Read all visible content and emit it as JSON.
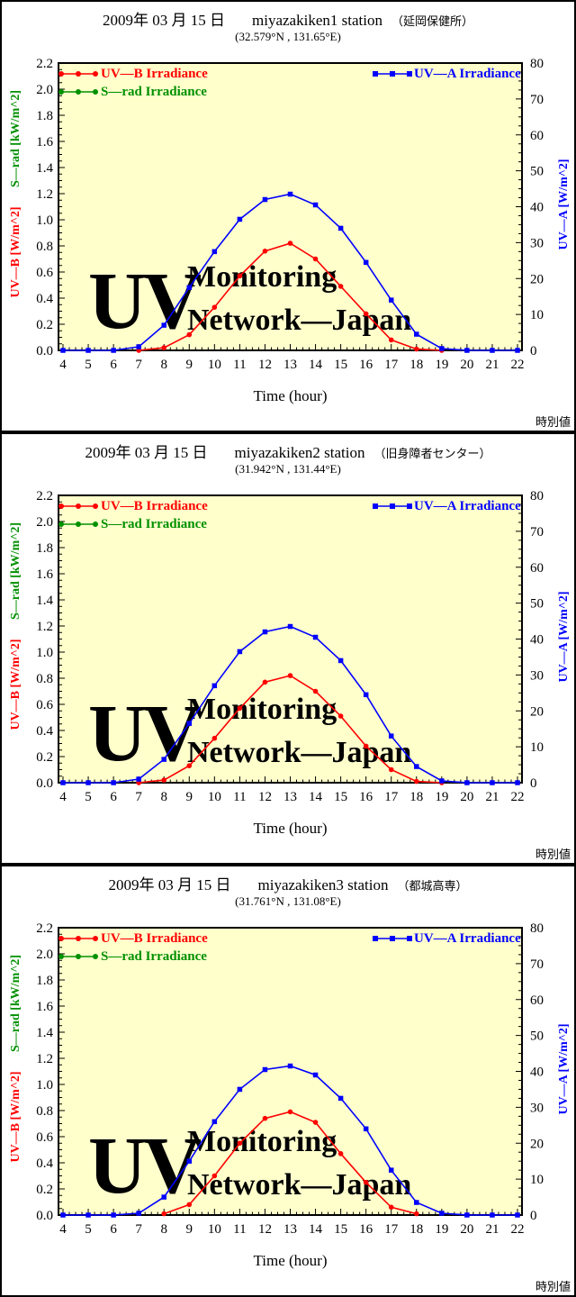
{
  "styles": {
    "plot_background": "#ffffcc",
    "frame_color": "#000000",
    "watermark_uv_color": "#e9e9f3",
    "watermark_text_color": "#fbfbe9",
    "uvb_color": "#ff0000",
    "srad_color": "#009000",
    "uva_color": "#0000ff"
  },
  "chart_data": [
    {
      "type": "line",
      "title": {
        "date": "2009年 03 月 15 日",
        "station": "miyazakiken1 station",
        "site": "（延岡保健所）"
      },
      "subtitle": "(32.579°N , 131.65°E)",
      "xlabel": "Time (hour)",
      "note": "時別値",
      "x_hours": [
        4,
        5,
        6,
        7,
        8,
        9,
        10,
        11,
        12,
        13,
        14,
        15,
        16,
        17,
        18,
        19,
        20,
        21,
        22
      ],
      "xlim": [
        4,
        22
      ],
      "x_major_step": 1,
      "x_minor_step": 0.25,
      "y_left": {
        "uvb_label": "UV—B [W/m^2]",
        "srad_label": "S—rad [kW/m^2]",
        "lim": [
          0,
          2.2
        ],
        "major_step": 0.2,
        "minor_step": 0.05
      },
      "y_right": {
        "label": "UV—A [W/m^2]",
        "lim": [
          0,
          80
        ],
        "major_step": 10,
        "minor_step": 2.5
      },
      "watermark": [
        "UV",
        "Monitoring",
        "Network—Japan"
      ],
      "legend_position": {
        "left_block": "top-left",
        "right_block": "top-right"
      },
      "series": [
        {
          "name": "UV—B Irradiance",
          "color": "#ff0000",
          "axis": "left",
          "marker": "circle",
          "values": [
            null,
            null,
            null,
            0,
            0.02,
            0.12,
            0.33,
            0.57,
            0.76,
            0.82,
            0.7,
            0.49,
            0.28,
            0.08,
            0.01,
            0,
            null,
            null,
            null
          ]
        },
        {
          "name": "S—rad Irradiance",
          "color": "#009000",
          "axis": "left",
          "marker": "circle",
          "values": []
        },
        {
          "name": "UV—A Irradiance",
          "color": "#0000ff",
          "axis": "right",
          "marker": "square",
          "values": [
            0,
            0,
            0,
            1,
            7,
            17.5,
            27.5,
            36.5,
            42,
            43.5,
            40.5,
            34,
            24.5,
            14,
            4.5,
            0.5,
            0,
            0,
            0
          ]
        }
      ]
    },
    {
      "type": "line",
      "title": {
        "date": "2009年 03 月 15 日",
        "station": "miyazakiken2 station",
        "site": "（旧身障者センター）"
      },
      "subtitle": "(31.942°N , 131.44°E)",
      "xlabel": "Time (hour)",
      "note": "時別値",
      "x_hours": [
        4,
        5,
        6,
        7,
        8,
        9,
        10,
        11,
        12,
        13,
        14,
        15,
        16,
        17,
        18,
        19,
        20,
        21,
        22
      ],
      "xlim": [
        4,
        22
      ],
      "x_major_step": 1,
      "x_minor_step": 0.25,
      "y_left": {
        "uvb_label": "UV—B [W/m^2]",
        "srad_label": "S—rad [kW/m^2]",
        "lim": [
          0,
          2.2
        ],
        "major_step": 0.2,
        "minor_step": 0.05
      },
      "y_right": {
        "label": "UV—A [W/m^2]",
        "lim": [
          0,
          80
        ],
        "major_step": 10,
        "minor_step": 2.5
      },
      "watermark": [
        "UV",
        "Monitoring",
        "Network—Japan"
      ],
      "legend_position": {
        "left_block": "top-left",
        "right_block": "top-right"
      },
      "series": [
        {
          "name": "UV—B Irradiance",
          "color": "#ff0000",
          "axis": "left",
          "marker": "circle",
          "values": [
            null,
            null,
            null,
            0,
            0.02,
            0.13,
            0.34,
            0.57,
            0.77,
            0.82,
            0.7,
            0.51,
            0.28,
            0.1,
            0.01,
            0,
            null,
            null,
            null
          ]
        },
        {
          "name": "S—rad Irradiance",
          "color": "#009000",
          "axis": "left",
          "marker": "circle",
          "values": []
        },
        {
          "name": "UV—A Irradiance",
          "color": "#0000ff",
          "axis": "right",
          "marker": "square",
          "values": [
            0,
            0,
            0,
            1,
            6.5,
            16.5,
            27,
            36.5,
            42,
            43.5,
            40.5,
            34,
            24.5,
            13,
            4.5,
            0.5,
            0,
            0,
            0
          ]
        }
      ]
    },
    {
      "type": "line",
      "title": {
        "date": "2009年 03 月 15 日",
        "station": "miyazakiken3 station",
        "site": "（都城高専）"
      },
      "subtitle": "(31.761°N , 131.08°E)",
      "xlabel": "Time (hour)",
      "note": "時別値",
      "x_hours": [
        4,
        5,
        6,
        7,
        8,
        9,
        10,
        11,
        12,
        13,
        14,
        15,
        16,
        17,
        18,
        19,
        20,
        21,
        22
      ],
      "xlim": [
        4,
        22
      ],
      "x_major_step": 1,
      "x_minor_step": 0.25,
      "y_left": {
        "uvb_label": "UV—B [W/m^2]",
        "srad_label": "S—rad [kW/m^2]",
        "lim": [
          0,
          2.2
        ],
        "major_step": 0.2,
        "minor_step": 0.05
      },
      "y_right": {
        "label": "UV—A [W/m^2]",
        "lim": [
          0,
          80
        ],
        "major_step": 10,
        "minor_step": 2.5
      },
      "watermark": [
        "UV",
        "Monitoring",
        "Network—Japan"
      ],
      "legend_position": {
        "left_block": "top-left",
        "right_block": "top-right"
      },
      "series": [
        {
          "name": "UV—B Irradiance",
          "color": "#ff0000",
          "axis": "left",
          "marker": "circle",
          "values": [
            null,
            null,
            null,
            null,
            0.01,
            0.08,
            0.3,
            0.55,
            0.74,
            0.79,
            0.71,
            0.47,
            0.25,
            0.06,
            0.01,
            null,
            null,
            null,
            null
          ]
        },
        {
          "name": "S—rad Irradiance",
          "color": "#009000",
          "axis": "left",
          "marker": "circle",
          "values": []
        },
        {
          "name": "UV—A Irradiance",
          "color": "#0000ff",
          "axis": "right",
          "marker": "square",
          "values": [
            0,
            0,
            0,
            0.5,
            5,
            15,
            26,
            35,
            40.5,
            41.5,
            39,
            32.5,
            24,
            12.5,
            3.5,
            0.5,
            0,
            0,
            0
          ]
        }
      ]
    }
  ]
}
